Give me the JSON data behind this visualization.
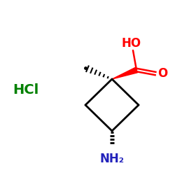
{
  "background_color": "#ffffff",
  "ring_color": "#000000",
  "cooh_color": "#ff0000",
  "hcl_color": "#008000",
  "nh2_color": "#2222bb",
  "HO_text": "HO",
  "O_text": "O",
  "NH2_text": "NH₂",
  "HCl_text": "HCl",
  "figsize": [
    2.5,
    2.5
  ],
  "dpi": 100
}
